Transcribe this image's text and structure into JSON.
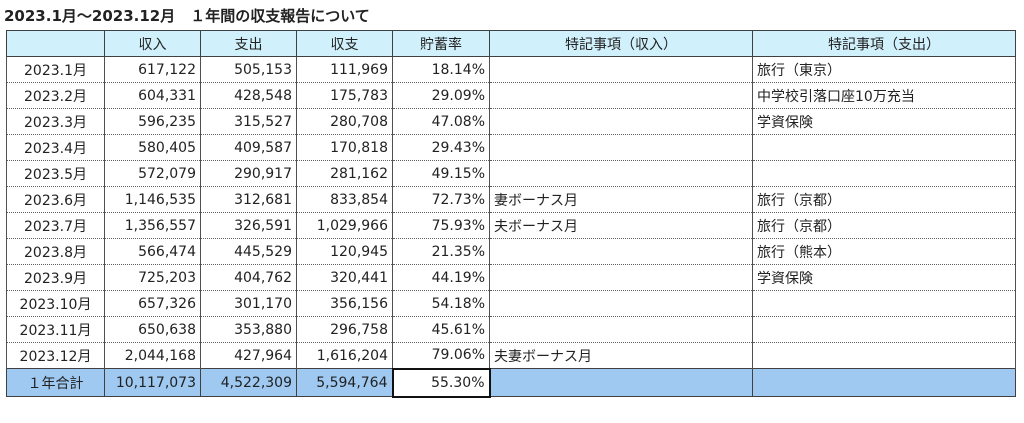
{
  "title": "2023.1月～2023.12月　１年間の収支報告について",
  "headers": [
    "",
    "収入",
    "支出",
    "収支",
    "貯蓄率",
    "特記事項（収入）",
    "特記事項（支出）"
  ],
  "rows": [
    {
      "month": "2023.1月",
      "income": "617,122",
      "expense": "505,153",
      "balance": "111,969",
      "rate": "18.14%",
      "note_income": "",
      "note_expense": "旅行（東京）"
    },
    {
      "month": "2023.2月",
      "income": "604,331",
      "expense": "428,548",
      "balance": "175,783",
      "rate": "29.09%",
      "note_income": "",
      "note_expense": "中学校引落口座10万充当"
    },
    {
      "month": "2023.3月",
      "income": "596,235",
      "expense": "315,527",
      "balance": "280,708",
      "rate": "47.08%",
      "note_income": "",
      "note_expense": "学資保険"
    },
    {
      "month": "2023.4月",
      "income": "580,405",
      "expense": "409,587",
      "balance": "170,818",
      "rate": "29.43%",
      "note_income": "",
      "note_expense": ""
    },
    {
      "month": "2023.5月",
      "income": "572,079",
      "expense": "290,917",
      "balance": "281,162",
      "rate": "49.15%",
      "note_income": "",
      "note_expense": ""
    },
    {
      "month": "2023.6月",
      "income": "1,146,535",
      "expense": "312,681",
      "balance": "833,854",
      "rate": "72.73%",
      "note_income": "妻ボーナス月",
      "note_expense": "旅行（京都）"
    },
    {
      "month": "2023.7月",
      "income": "1,356,557",
      "expense": "326,591",
      "balance": "1,029,966",
      "rate": "75.93%",
      "note_income": "夫ボーナス月",
      "note_expense": "旅行（京都）"
    },
    {
      "month": "2023.8月",
      "income": "566,474",
      "expense": "445,529",
      "balance": "120,945",
      "rate": "21.35%",
      "note_income": "",
      "note_expense": "旅行（熊本）"
    },
    {
      "month": "2023.9月",
      "income": "725,203",
      "expense": "404,762",
      "balance": "320,441",
      "rate": "44.19%",
      "note_income": "",
      "note_expense": "学資保険"
    },
    {
      "month": "2023.10月",
      "income": "657,326",
      "expense": "301,170",
      "balance": "356,156",
      "rate": "54.18%",
      "note_income": "",
      "note_expense": ""
    },
    {
      "month": "2023.11月",
      "income": "650,638",
      "expense": "353,880",
      "balance": "296,758",
      "rate": "45.61%",
      "note_income": "",
      "note_expense": ""
    },
    {
      "month": "2023.12月",
      "income": "2,044,168",
      "expense": "427,964",
      "balance": "1,616,204",
      "rate": "79.06%",
      "note_income": "夫妻ボーナス月",
      "note_expense": ""
    }
  ],
  "total": {
    "label": "１年合計",
    "income": "10,117,073",
    "expense": "4,522,309",
    "balance": "5,594,764",
    "rate": "55.30%",
    "note_income": "",
    "note_expense": ""
  },
  "colors": {
    "header_bg": "#d0f0fb",
    "total_bg": "#9fc9f1",
    "grid": "#505050"
  }
}
